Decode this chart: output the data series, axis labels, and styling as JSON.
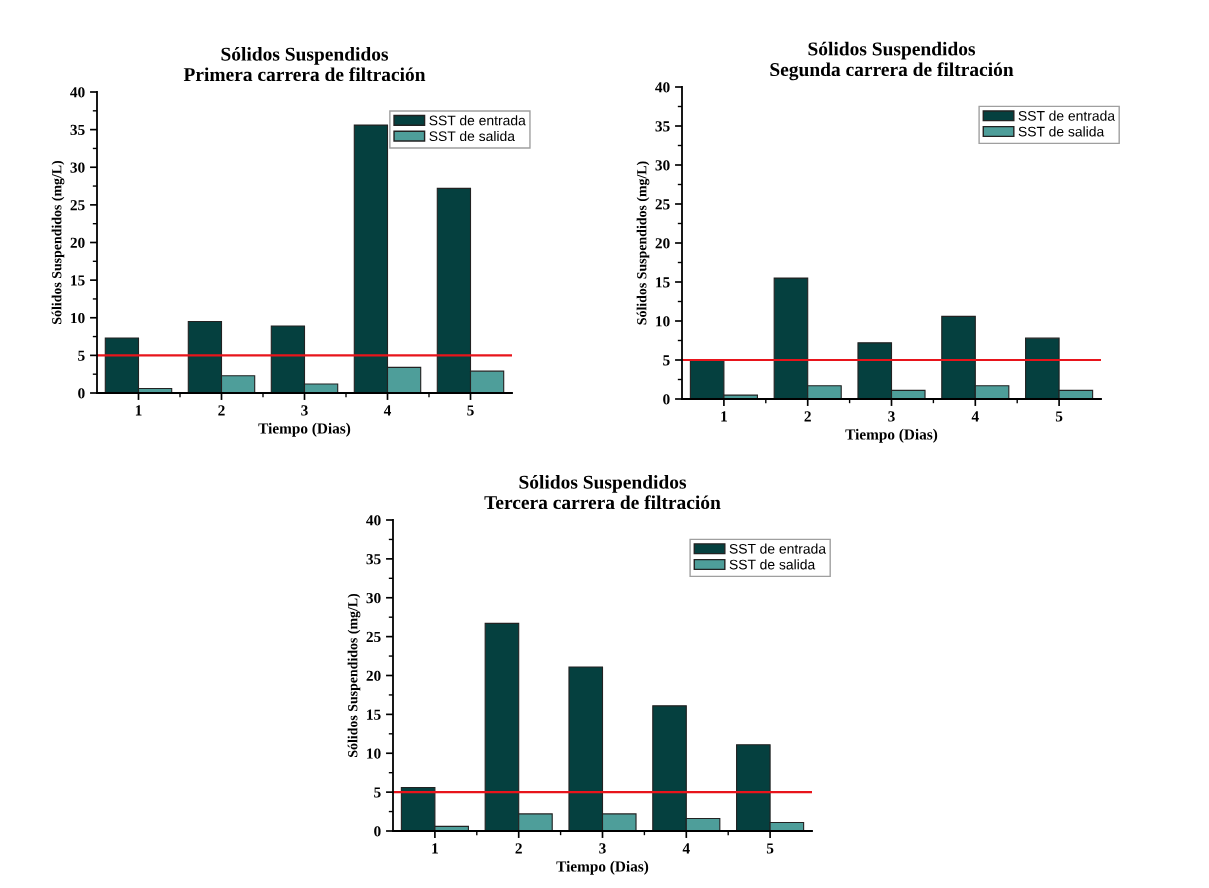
{
  "chart_data": [
    {
      "type": "bar",
      "title": "Sólidos Suspendidos\nPrimera carrera de filtración",
      "xlabel": "Tiempo (Dias)",
      "ylabel": "Sólidos Suspendidos (mg/L)",
      "categories": [
        "1",
        "2",
        "3",
        "4",
        "5"
      ],
      "series": [
        {
          "name": "SST de entrada",
          "color": "#05403f",
          "values": [
            7.3,
            9.5,
            8.9,
            35.6,
            27.2
          ]
        },
        {
          "name": "SST de salida",
          "color": "#4e9e9a",
          "values": [
            0.6,
            2.3,
            1.2,
            3.4,
            2.9
          ]
        }
      ],
      "ylim": [
        0,
        40
      ],
      "yticks": [
        0,
        5,
        10,
        15,
        20,
        25,
        30,
        35,
        40
      ],
      "ref_lines": [
        {
          "axis": "y",
          "value": 5,
          "color": "#e8141b"
        }
      ],
      "legend": "top right",
      "grid": false
    },
    {
      "type": "bar",
      "title": "Sólidos Suspendidos\nSegunda carrera de filtración",
      "xlabel": "Tiempo (Dias)",
      "ylabel": "Sólidos Suspendidos (mg/L)",
      "categories": [
        "1",
        "2",
        "3",
        "4",
        "5"
      ],
      "series": [
        {
          "name": "SST de entrada",
          "color": "#05403f",
          "values": [
            5.0,
            15.5,
            7.2,
            10.6,
            7.8
          ]
        },
        {
          "name": "SST de salida",
          "color": "#4e9e9a",
          "values": [
            0.5,
            1.7,
            1.1,
            1.7,
            1.1
          ]
        }
      ],
      "ylim": [
        0,
        40
      ],
      "yticks": [
        0,
        5,
        10,
        15,
        20,
        25,
        30,
        35,
        40
      ],
      "ref_lines": [
        {
          "axis": "y",
          "value": 5,
          "color": "#e8141b"
        }
      ],
      "legend": "top right",
      "grid": false
    },
    {
      "type": "bar",
      "title": "Sólidos Suspendidos\nTercera carrera de filtración",
      "xlabel": "Tiempo (Dias)",
      "ylabel": "Sólidos Suspendidos (mg/L)",
      "categories": [
        "1",
        "2",
        "3",
        "4",
        "5"
      ],
      "series": [
        {
          "name": "SST de entrada",
          "color": "#05403f",
          "values": [
            5.6,
            26.7,
            21.1,
            16.1,
            11.1
          ]
        },
        {
          "name": "SST de salida",
          "color": "#4e9e9a",
          "values": [
            0.6,
            2.2,
            2.2,
            1.6,
            1.1
          ]
        }
      ],
      "ylim": [
        0,
        40
      ],
      "yticks": [
        0,
        5,
        10,
        15,
        20,
        25,
        30,
        35,
        40
      ],
      "ref_lines": [
        {
          "axis": "y",
          "value": 5,
          "color": "#e8141b"
        }
      ],
      "legend": "top right",
      "grid": false
    }
  ]
}
